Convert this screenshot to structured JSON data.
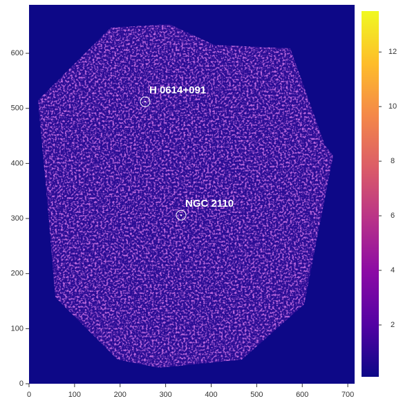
{
  "chart_data": {
    "type": "image",
    "xlim": [
      0,
      715
    ],
    "ylim": [
      0,
      688
    ],
    "xticks": [
      0,
      100,
      200,
      300,
      400,
      500,
      600,
      700
    ],
    "yticks": [
      0,
      100,
      200,
      300,
      400,
      500,
      600
    ],
    "background": "#0d0887",
    "annotations": [
      {
        "text": "H 0614+091",
        "x": 255,
        "y": 512,
        "color": "#ffffff"
      },
      {
        "text": "NGC 2110",
        "x": 334,
        "y": 306,
        "color": "#ffffff"
      }
    ],
    "colorbar": {
      "lim": [
        0.1,
        13.5
      ],
      "ticks": [
        2,
        4,
        6,
        8,
        10,
        12
      ],
      "colors": [
        "#0d0887",
        "#5302a3",
        "#8b0aa5",
        "#b83289",
        "#db5c68",
        "#f48849",
        "#febd2a",
        "#f0f921"
      ]
    }
  }
}
